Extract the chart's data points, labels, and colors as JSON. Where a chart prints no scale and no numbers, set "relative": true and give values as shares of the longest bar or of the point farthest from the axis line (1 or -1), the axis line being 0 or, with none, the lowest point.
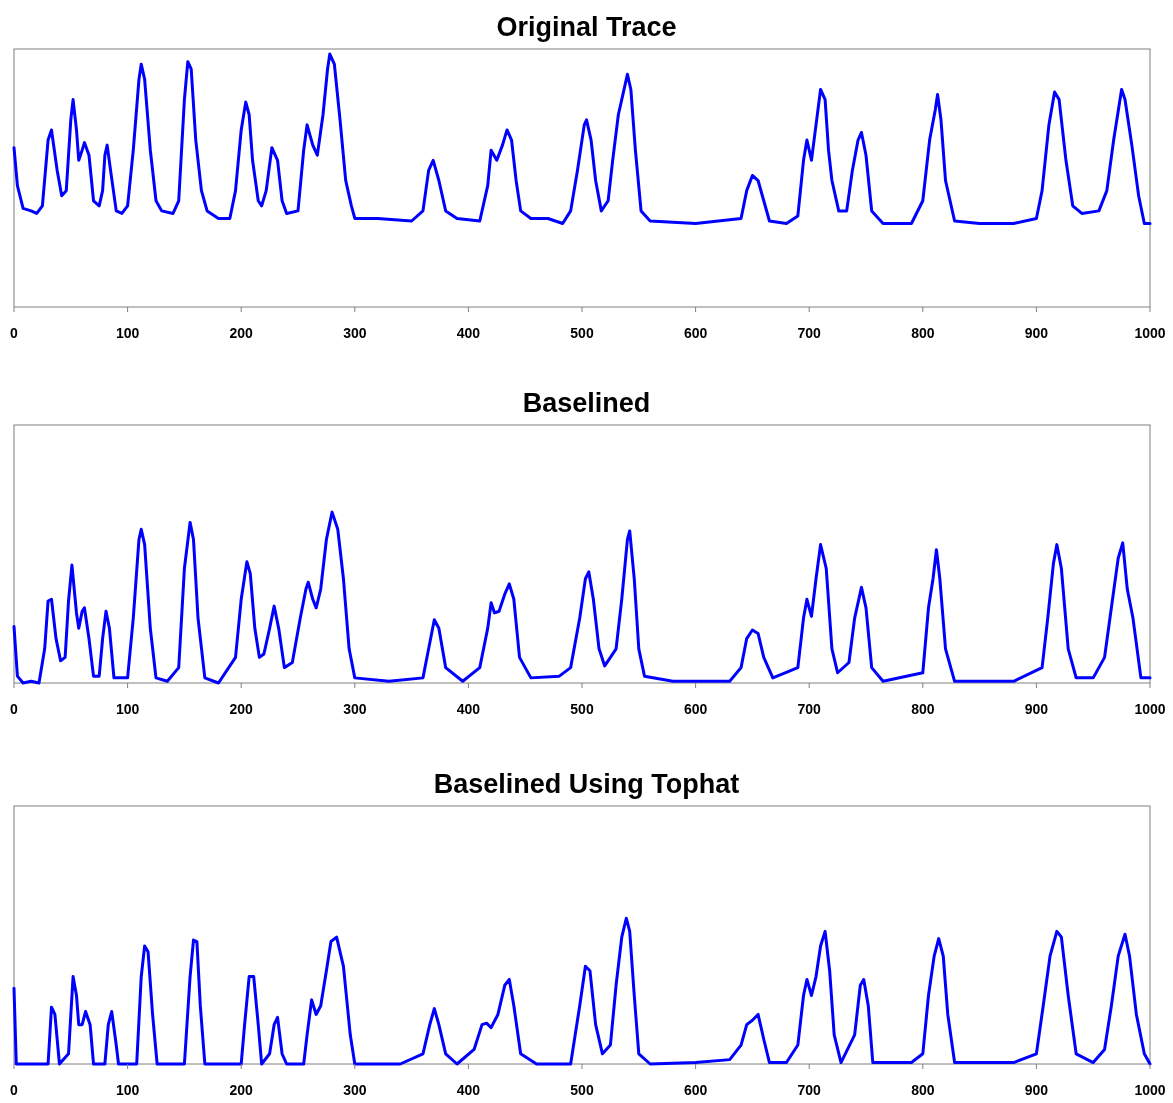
{
  "chart_data": [
    {
      "type": "line",
      "title": "Original Trace",
      "relative": true,
      "xlim": [
        0,
        1000
      ],
      "xticks": [
        0,
        100,
        200,
        300,
        400,
        500,
        600,
        700,
        800,
        900,
        1000
      ],
      "tick_labels": "x",
      "series": [
        {
          "color": "#0000ff",
          "x": [
            0,
            3,
            8,
            15,
            20,
            25,
            30,
            33,
            38,
            42,
            46,
            50,
            52,
            55,
            57,
            60,
            62,
            66,
            70,
            75,
            78,
            80,
            82,
            85,
            90,
            95,
            100,
            105,
            110,
            112,
            115,
            120,
            125,
            130,
            140,
            145,
            150,
            153,
            156,
            160,
            165,
            170,
            180,
            190,
            195,
            200,
            204,
            207,
            210,
            215,
            218,
            222,
            227,
            232,
            236,
            240,
            250,
            255,
            258,
            263,
            267,
            272,
            276,
            278,
            282,
            287,
            292,
            297,
            300,
            320,
            350,
            360,
            365,
            369,
            374,
            380,
            390,
            410,
            417,
            420,
            425,
            430,
            434,
            438,
            442,
            446,
            455,
            470,
            483,
            490,
            496,
            502,
            504,
            508,
            512,
            517,
            523,
            527,
            532,
            538,
            540,
            543,
            547,
            552,
            560,
            600,
            640,
            645,
            650,
            655,
            660,
            665,
            680,
            690,
            695,
            698,
            702,
            706,
            710,
            714,
            717,
            720,
            726,
            733,
            738,
            743,
            746,
            750,
            755,
            765,
            790,
            800,
            806,
            811,
            813,
            816,
            820,
            828,
            850,
            880,
            900,
            905,
            911,
            916,
            920,
            926,
            932,
            940,
            955,
            962,
            968,
            975,
            978,
            984,
            990,
            995,
            1000
          ],
          "values": [
            0.63,
            0.48,
            0.39,
            0.38,
            0.37,
            0.4,
            0.66,
            0.7,
            0.54,
            0.44,
            0.46,
            0.74,
            0.82,
            0.7,
            0.58,
            0.62,
            0.65,
            0.6,
            0.42,
            0.4,
            0.46,
            0.6,
            0.64,
            0.54,
            0.38,
            0.37,
            0.4,
            0.62,
            0.9,
            0.96,
            0.9,
            0.62,
            0.42,
            0.38,
            0.37,
            0.42,
            0.82,
            0.97,
            0.94,
            0.66,
            0.46,
            0.38,
            0.35,
            0.35,
            0.46,
            0.7,
            0.81,
            0.76,
            0.58,
            0.42,
            0.4,
            0.46,
            0.63,
            0.58,
            0.42,
            0.37,
            0.38,
            0.62,
            0.72,
            0.64,
            0.6,
            0.76,
            0.94,
            1,
            0.96,
            0.74,
            0.5,
            0.4,
            0.35,
            0.35,
            0.34,
            0.38,
            0.54,
            0.58,
            0.5,
            0.38,
            0.35,
            0.34,
            0.48,
            0.62,
            0.58,
            0.64,
            0.7,
            0.66,
            0.5,
            0.38,
            0.35,
            0.35,
            0.33,
            0.38,
            0.54,
            0.72,
            0.74,
            0.66,
            0.5,
            0.38,
            0.42,
            0.58,
            0.76,
            0.88,
            0.92,
            0.86,
            0.62,
            0.38,
            0.34,
            0.33,
            0.35,
            0.46,
            0.52,
            0.5,
            0.42,
            0.34,
            0.33,
            0.36,
            0.58,
            0.66,
            0.58,
            0.72,
            0.86,
            0.82,
            0.62,
            0.5,
            0.38,
            0.38,
            0.54,
            0.66,
            0.69,
            0.6,
            0.38,
            0.33,
            0.33,
            0.42,
            0.66,
            0.78,
            0.84,
            0.74,
            0.5,
            0.34,
            0.33,
            0.33,
            0.35,
            0.46,
            0.72,
            0.85,
            0.82,
            0.58,
            0.4,
            0.37,
            0.38,
            0.46,
            0.66,
            0.86,
            0.82,
            0.64,
            0.44,
            0.33,
            0.33
          ]
        }
      ]
    },
    {
      "type": "line",
      "title": "Baselined",
      "relative": true,
      "xlim": [
        0,
        1000
      ],
      "xticks": [
        0,
        100,
        200,
        300,
        400,
        500,
        600,
        700,
        800,
        900,
        1000
      ],
      "tick_labels": "x",
      "series": [
        {
          "color": "#0000ff",
          "x": [
            0,
            3,
            8,
            15,
            22,
            27,
            30,
            33,
            37,
            41,
            45,
            48,
            51,
            55,
            57,
            60,
            62,
            66,
            70,
            75,
            78,
            81,
            84,
            88,
            100,
            105,
            110,
            112,
            115,
            120,
            125,
            135,
            145,
            150,
            155,
            158,
            162,
            168,
            180,
            195,
            200,
            205,
            208,
            212,
            216,
            220,
            225,
            229,
            233,
            238,
            245,
            252,
            257,
            259,
            263,
            266,
            270,
            275,
            280,
            285,
            290,
            295,
            300,
            330,
            360,
            365,
            370,
            374,
            380,
            395,
            410,
            417,
            420,
            423,
            427,
            432,
            436,
            440,
            445,
            455,
            480,
            490,
            498,
            503,
            506,
            510,
            515,
            520,
            530,
            535,
            540,
            542,
            546,
            550,
            555,
            580,
            630,
            640,
            645,
            650,
            655,
            660,
            668,
            690,
            695,
            698,
            702,
            706,
            710,
            715,
            720,
            725,
            735,
            740,
            746,
            750,
            755,
            765,
            800,
            805,
            809,
            812,
            815,
            820,
            828,
            880,
            905,
            910,
            915,
            918,
            922,
            928,
            935,
            950,
            960,
            966,
            972,
            976,
            980,
            985,
            992,
            1000
          ],
          "values": [
            0.33,
            0.04,
            0,
            0.01,
            0,
            0.2,
            0.48,
            0.49,
            0.26,
            0.13,
            0.15,
            0.48,
            0.69,
            0.41,
            0.32,
            0.42,
            0.44,
            0.26,
            0.04,
            0.04,
            0.26,
            0.42,
            0.32,
            0.03,
            0.03,
            0.38,
            0.84,
            0.9,
            0.81,
            0.32,
            0.03,
            0.01,
            0.09,
            0.67,
            0.94,
            0.84,
            0.38,
            0.03,
            0,
            0.15,
            0.49,
            0.71,
            0.64,
            0.32,
            0.15,
            0.17,
            0.32,
            0.45,
            0.32,
            0.09,
            0.12,
            0.38,
            0.55,
            0.59,
            0.49,
            0.44,
            0.55,
            0.84,
            1,
            0.9,
            0.61,
            0.2,
            0.03,
            0.01,
            0.03,
            0.2,
            0.37,
            0.32,
            0.09,
            0.01,
            0.09,
            0.32,
            0.47,
            0.41,
            0.42,
            0.52,
            0.58,
            0.49,
            0.15,
            0.03,
            0.04,
            0.09,
            0.38,
            0.61,
            0.65,
            0.49,
            0.2,
            0.1,
            0.2,
            0.49,
            0.84,
            0.89,
            0.61,
            0.2,
            0.04,
            0.01,
            0.01,
            0.09,
            0.26,
            0.31,
            0.29,
            0.15,
            0.03,
            0.09,
            0.38,
            0.49,
            0.39,
            0.61,
            0.81,
            0.67,
            0.2,
            0.06,
            0.12,
            0.38,
            0.56,
            0.44,
            0.09,
            0.01,
            0.06,
            0.44,
            0.61,
            0.78,
            0.61,
            0.2,
            0.01,
            0.01,
            0.09,
            0.38,
            0.7,
            0.81,
            0.67,
            0.2,
            0.03,
            0.03,
            0.15,
            0.44,
            0.73,
            0.82,
            0.55,
            0.38,
            0.03,
            0.03
          ]
        }
      ]
    },
    {
      "type": "line",
      "title": "Baselined Using Tophat",
      "relative": true,
      "xlim": [
        0,
        1000
      ],
      "xticks": [
        0,
        100,
        200,
        300,
        400,
        500,
        600,
        700,
        800,
        900,
        1000
      ],
      "tick_labels": "x",
      "series": [
        {
          "color": "#0000ff",
          "x": [
            0,
            2,
            30,
            33,
            36,
            40,
            48,
            52,
            55,
            57,
            60,
            63,
            67,
            70,
            80,
            83,
            86,
            90,
            92,
            108,
            112,
            115,
            118,
            122,
            126,
            150,
            155,
            158,
            161,
            164,
            168,
            200,
            203,
            207,
            211,
            215,
            218,
            225,
            229,
            232,
            236,
            240,
            255,
            258,
            262,
            266,
            270,
            275,
            279,
            284,
            290,
            296,
            300,
            340,
            360,
            366,
            370,
            374,
            380,
            390,
            405,
            412,
            416,
            420,
            426,
            432,
            436,
            440,
            446,
            460,
            490,
            498,
            503,
            507,
            512,
            518,
            525,
            530,
            535,
            539,
            542,
            546,
            550,
            560,
            600,
            630,
            640,
            645,
            650,
            655,
            660,
            665,
            680,
            690,
            695,
            698,
            702,
            706,
            710,
            714,
            718,
            722,
            728,
            740,
            745,
            748,
            752,
            756,
            790,
            800,
            805,
            810,
            814,
            818,
            822,
            828,
            880,
            900,
            906,
            912,
            918,
            922,
            928,
            935,
            950,
            960,
            966,
            972,
            978,
            982,
            988,
            995,
            1000
          ],
          "values": [
            0.52,
            0,
            0,
            0.39,
            0.34,
            0,
            0.07,
            0.6,
            0.47,
            0.27,
            0.27,
            0.36,
            0.27,
            0,
            0,
            0.27,
            0.36,
            0.13,
            0,
            0,
            0.6,
            0.81,
            0.77,
            0.34,
            0,
            0,
            0.6,
            0.85,
            0.84,
            0.4,
            0,
            0,
            0.27,
            0.6,
            0.6,
            0.27,
            0,
            0.07,
            0.27,
            0.32,
            0.07,
            0,
            0,
            0.2,
            0.44,
            0.34,
            0.4,
            0.64,
            0.84,
            0.87,
            0.67,
            0.2,
            0,
            0,
            0.07,
            0.27,
            0.38,
            0.27,
            0.07,
            0,
            0.1,
            0.27,
            0.28,
            0.25,
            0.34,
            0.54,
            0.58,
            0.4,
            0.07,
            0,
            0,
            0.4,
            0.67,
            0.64,
            0.27,
            0.07,
            0.13,
            0.54,
            0.87,
            1,
            0.91,
            0.47,
            0.07,
            0,
            0.01,
            0.03,
            0.13,
            0.27,
            0.3,
            0.34,
            0.17,
            0.01,
            0.01,
            0.13,
            0.47,
            0.58,
            0.47,
            0.6,
            0.81,
            0.91,
            0.64,
            0.2,
            0.01,
            0.2,
            0.54,
            0.58,
            0.4,
            0.01,
            0.01,
            0.07,
            0.47,
            0.74,
            0.86,
            0.74,
            0.34,
            0.01,
            0.01,
            0.07,
            0.4,
            0.74,
            0.91,
            0.87,
            0.47,
            0.07,
            0.01,
            0.1,
            0.4,
            0.74,
            0.89,
            0.74,
            0.34,
            0.07,
            0
          ]
        }
      ]
    }
  ]
}
